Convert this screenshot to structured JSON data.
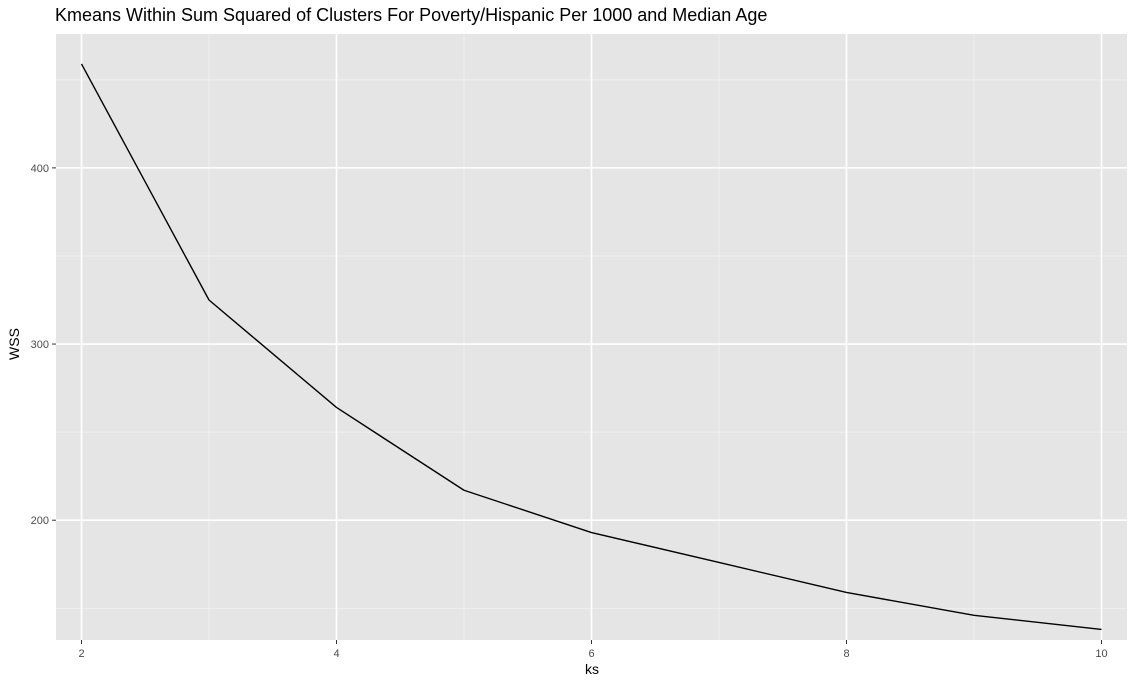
{
  "chart_data": {
    "type": "line",
    "title": "Kmeans Within Sum Squared of Clusters For Poverty/Hispanic Per 1000 and Median Age",
    "xlabel": "ks",
    "ylabel": "WSS",
    "x": [
      2,
      3,
      4,
      5,
      6,
      7,
      8,
      9,
      10
    ],
    "series": [
      {
        "values": [
          459,
          325,
          264,
          217,
          193,
          176,
          159,
          146,
          138
        ]
      }
    ],
    "xlim": [
      1.8,
      10.2
    ],
    "ylim": [
      132,
      476
    ],
    "x_ticks": [
      2,
      4,
      6,
      8,
      10
    ],
    "x_minor_ticks": [
      3,
      5,
      7,
      9
    ],
    "y_ticks": [
      200,
      300,
      400
    ],
    "y_minor_ticks": [
      150,
      250,
      350,
      450
    ],
    "x_tick_labels": [
      "2",
      "4",
      "6",
      "8",
      "10"
    ],
    "y_tick_labels": [
      "200",
      "300",
      "400"
    ],
    "grid": true,
    "legend": "none",
    "colors": {
      "panel_background": "#e5e5e5",
      "grid_major": "#ffffff",
      "grid_minor": "#f2f2f2",
      "line": "#000000",
      "tick_mark": "#333333",
      "tick_label": "#4d4d4d"
    }
  }
}
